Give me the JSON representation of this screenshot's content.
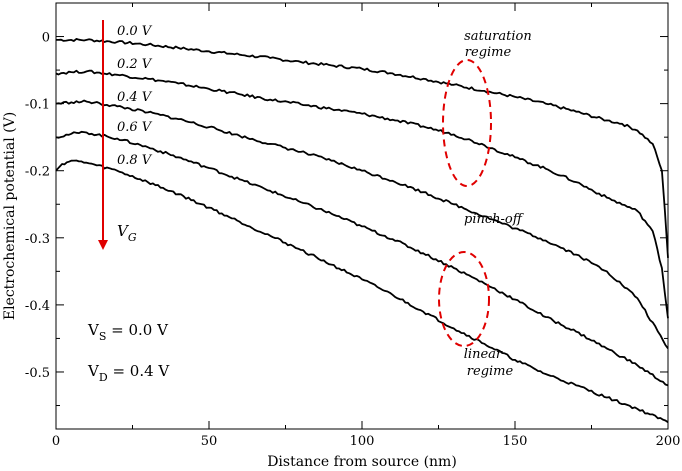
{
  "chart_data": {
    "type": "line",
    "title": "",
    "xlabel": "Distance from source (nm)",
    "ylabel": "Electrochemical potential (V)",
    "xlim": [
      0,
      200
    ],
    "ylim": [
      -0.585,
      0.05
    ],
    "grid": false,
    "x_ticks": [
      0,
      50,
      100,
      150,
      200
    ],
    "x_tick_labels": [
      "0",
      "50",
      "100",
      "150",
      "200"
    ],
    "y_ticks": [
      0,
      -0.1,
      -0.2,
      -0.3,
      -0.4,
      -0.5
    ],
    "y_tick_labels": [
      "0",
      "-0.1",
      "-0.2",
      "-0.3",
      "-0.4",
      "-0.5"
    ],
    "series": [
      {
        "name": "0.0 V",
        "x": [
          0,
          10,
          20,
          30,
          40,
          50,
          60,
          70,
          80,
          90,
          100,
          110,
          120,
          130,
          140,
          150,
          160,
          170,
          180,
          185,
          190,
          195,
          198,
          199,
          200
        ],
        "y": [
          -0.005,
          -0.005,
          -0.008,
          -0.012,
          -0.017,
          -0.022,
          -0.027,
          -0.032,
          -0.038,
          -0.043,
          -0.048,
          -0.055,
          -0.063,
          -0.072,
          -0.081,
          -0.09,
          -0.1,
          -0.112,
          -0.125,
          -0.13,
          -0.14,
          -0.16,
          -0.2,
          -0.26,
          -0.33
        ]
      },
      {
        "name": "0.2 V",
        "x": [
          0,
          5,
          10,
          20,
          30,
          40,
          50,
          60,
          70,
          80,
          90,
          100,
          110,
          120,
          130,
          140,
          150,
          160,
          170,
          180,
          190,
          195,
          198,
          200
        ],
        "y": [
          -0.055,
          -0.053,
          -0.052,
          -0.057,
          -0.063,
          -0.07,
          -0.078,
          -0.086,
          -0.094,
          -0.101,
          -0.108,
          -0.115,
          -0.124,
          -0.134,
          -0.146,
          -0.162,
          -0.18,
          -0.197,
          -0.217,
          -0.24,
          -0.26,
          -0.29,
          -0.345,
          -0.42
        ]
      },
      {
        "name": "0.4 V",
        "x": [
          0,
          5,
          10,
          20,
          30,
          40,
          50,
          60,
          70,
          80,
          90,
          100,
          110,
          120,
          130,
          140,
          150,
          160,
          170,
          180,
          190,
          200
        ],
        "y": [
          -0.1,
          -0.098,
          -0.097,
          -0.104,
          -0.113,
          -0.123,
          -0.135,
          -0.148,
          -0.16,
          -0.172,
          -0.185,
          -0.2,
          -0.215,
          -0.232,
          -0.25,
          -0.268,
          -0.286,
          -0.304,
          -0.325,
          -0.35,
          -0.39,
          -0.465
        ]
      },
      {
        "name": "0.6 V",
        "x": [
          0,
          5,
          10,
          20,
          30,
          40,
          50,
          60,
          70,
          80,
          90,
          100,
          110,
          120,
          130,
          140,
          150,
          160,
          170,
          180,
          190,
          200
        ],
        "y": [
          -0.15,
          -0.145,
          -0.143,
          -0.152,
          -0.165,
          -0.18,
          -0.196,
          -0.213,
          -0.23,
          -0.247,
          -0.264,
          -0.283,
          -0.302,
          -0.323,
          -0.345,
          -0.368,
          -0.392,
          -0.418,
          -0.44,
          -0.465,
          -0.49,
          -0.52
        ]
      },
      {
        "name": "0.8 V",
        "x": [
          0,
          2,
          5,
          10,
          20,
          30,
          40,
          50,
          60,
          70,
          80,
          90,
          100,
          110,
          120,
          130,
          140,
          150,
          160,
          170,
          180,
          190,
          200
        ],
        "y": [
          -0.2,
          -0.19,
          -0.185,
          -0.188,
          -0.2,
          -0.217,
          -0.235,
          -0.255,
          -0.276,
          -0.297,
          -0.318,
          -0.34,
          -0.362,
          -0.385,
          -0.41,
          -0.435,
          -0.458,
          -0.482,
          -0.503,
          -0.52,
          -0.538,
          -0.555,
          -0.575
        ]
      }
    ],
    "annotations": {
      "saturation": [
        "saturation",
        "regime"
      ],
      "pinch_off": "pinch-off",
      "linear": [
        "linear",
        "regime"
      ],
      "vg_main": "V",
      "vg_sub": "G",
      "vs_main": "V",
      "vs_sub": "S",
      "vs_value": " = 0.0 V",
      "vd_main": "V",
      "vd_sub": "D",
      "vd_value": " = 0.4 V"
    },
    "colors": {
      "line": "#000000",
      "annotation": "#e00000"
    }
  }
}
